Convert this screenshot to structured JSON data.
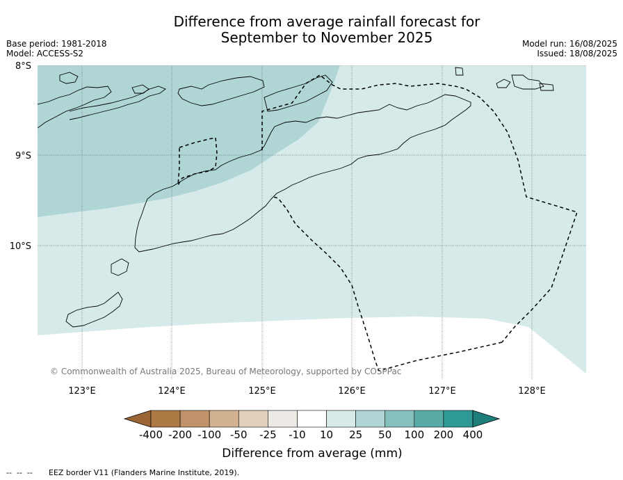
{
  "title": {
    "line1": "Difference from average rainfall forecast for",
    "line2": "September to November 2025"
  },
  "meta": {
    "base_period": "Base period: 1981-2018",
    "model": "Model: ACCESS-S2",
    "model_run": "Model run: 16/08/2025",
    "issued": "Issued: 18/08/2025"
  },
  "map": {
    "lat_labels": [
      "8°S",
      "9°S",
      "10°S"
    ],
    "lon_labels": [
      "123°E",
      "124°E",
      "125°E",
      "126°E",
      "127°E",
      "128°E"
    ],
    "copyright": "© Commonwealth of Australia 2025, Bureau of Meteorology, supported by COSPPac",
    "colors": {
      "band_25_50": "#afd5d5",
      "band_10_25": "#d5eae9",
      "band_m10_10": "#ffffff",
      "coastline": "#000000",
      "eez": "#000000"
    }
  },
  "colorbar": {
    "labels": [
      "-400",
      "-200",
      "-100",
      "-50",
      "-25",
      "-10",
      "10",
      "25",
      "50",
      "100",
      "200",
      "400"
    ],
    "colors": [
      "#9b6535",
      "#ad7944",
      "#c0926a",
      "#d2b291",
      "#e2d0bc",
      "#ede9e4",
      "#ffffff",
      "#d5eae9",
      "#afd5d5",
      "#86c0bc",
      "#58aaa7",
      "#2f9995",
      "#1d7d78"
    ],
    "title": "Difference from average (mm)"
  },
  "footer": {
    "legend_symbol": "--  --  --",
    "legend_text": "EEZ border V11 (Flanders Marine Institute, 2019)."
  }
}
